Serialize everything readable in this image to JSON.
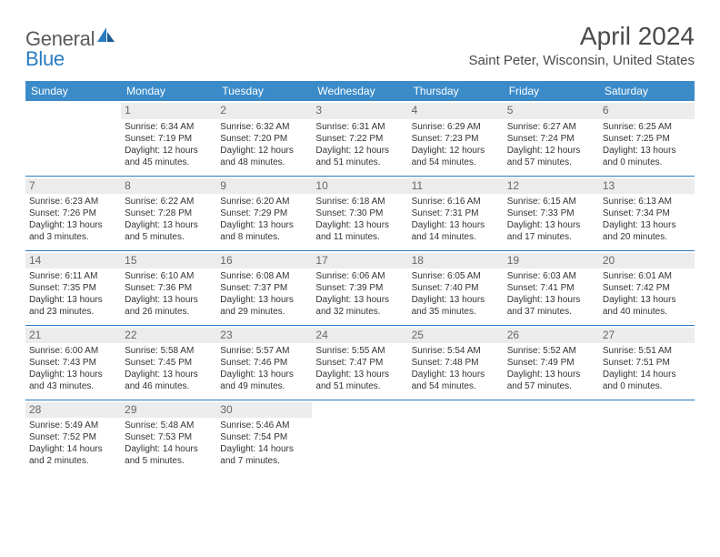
{
  "brand": {
    "part1": "General",
    "part2": "Blue"
  },
  "title": "April 2024",
  "location": "Saint Peter, Wisconsin, United States",
  "header_bg": "#3b8bc9",
  "rule_color": "#2b7bbf",
  "daynum_bg": "#ececec",
  "day_headers": [
    "Sunday",
    "Monday",
    "Tuesday",
    "Wednesday",
    "Thursday",
    "Friday",
    "Saturday"
  ],
  "weeks": [
    [
      null,
      {
        "n": "1",
        "sr": "Sunrise: 6:34 AM",
        "ss": "Sunset: 7:19 PM",
        "d1": "Daylight: 12 hours",
        "d2": "and 45 minutes."
      },
      {
        "n": "2",
        "sr": "Sunrise: 6:32 AM",
        "ss": "Sunset: 7:20 PM",
        "d1": "Daylight: 12 hours",
        "d2": "and 48 minutes."
      },
      {
        "n": "3",
        "sr": "Sunrise: 6:31 AM",
        "ss": "Sunset: 7:22 PM",
        "d1": "Daylight: 12 hours",
        "d2": "and 51 minutes."
      },
      {
        "n": "4",
        "sr": "Sunrise: 6:29 AM",
        "ss": "Sunset: 7:23 PM",
        "d1": "Daylight: 12 hours",
        "d2": "and 54 minutes."
      },
      {
        "n": "5",
        "sr": "Sunrise: 6:27 AM",
        "ss": "Sunset: 7:24 PM",
        "d1": "Daylight: 12 hours",
        "d2": "and 57 minutes."
      },
      {
        "n": "6",
        "sr": "Sunrise: 6:25 AM",
        "ss": "Sunset: 7:25 PM",
        "d1": "Daylight: 13 hours",
        "d2": "and 0 minutes."
      }
    ],
    [
      {
        "n": "7",
        "sr": "Sunrise: 6:23 AM",
        "ss": "Sunset: 7:26 PM",
        "d1": "Daylight: 13 hours",
        "d2": "and 3 minutes."
      },
      {
        "n": "8",
        "sr": "Sunrise: 6:22 AM",
        "ss": "Sunset: 7:28 PM",
        "d1": "Daylight: 13 hours",
        "d2": "and 5 minutes."
      },
      {
        "n": "9",
        "sr": "Sunrise: 6:20 AM",
        "ss": "Sunset: 7:29 PM",
        "d1": "Daylight: 13 hours",
        "d2": "and 8 minutes."
      },
      {
        "n": "10",
        "sr": "Sunrise: 6:18 AM",
        "ss": "Sunset: 7:30 PM",
        "d1": "Daylight: 13 hours",
        "d2": "and 11 minutes."
      },
      {
        "n": "11",
        "sr": "Sunrise: 6:16 AM",
        "ss": "Sunset: 7:31 PM",
        "d1": "Daylight: 13 hours",
        "d2": "and 14 minutes."
      },
      {
        "n": "12",
        "sr": "Sunrise: 6:15 AM",
        "ss": "Sunset: 7:33 PM",
        "d1": "Daylight: 13 hours",
        "d2": "and 17 minutes."
      },
      {
        "n": "13",
        "sr": "Sunrise: 6:13 AM",
        "ss": "Sunset: 7:34 PM",
        "d1": "Daylight: 13 hours",
        "d2": "and 20 minutes."
      }
    ],
    [
      {
        "n": "14",
        "sr": "Sunrise: 6:11 AM",
        "ss": "Sunset: 7:35 PM",
        "d1": "Daylight: 13 hours",
        "d2": "and 23 minutes."
      },
      {
        "n": "15",
        "sr": "Sunrise: 6:10 AM",
        "ss": "Sunset: 7:36 PM",
        "d1": "Daylight: 13 hours",
        "d2": "and 26 minutes."
      },
      {
        "n": "16",
        "sr": "Sunrise: 6:08 AM",
        "ss": "Sunset: 7:37 PM",
        "d1": "Daylight: 13 hours",
        "d2": "and 29 minutes."
      },
      {
        "n": "17",
        "sr": "Sunrise: 6:06 AM",
        "ss": "Sunset: 7:39 PM",
        "d1": "Daylight: 13 hours",
        "d2": "and 32 minutes."
      },
      {
        "n": "18",
        "sr": "Sunrise: 6:05 AM",
        "ss": "Sunset: 7:40 PM",
        "d1": "Daylight: 13 hours",
        "d2": "and 35 minutes."
      },
      {
        "n": "19",
        "sr": "Sunrise: 6:03 AM",
        "ss": "Sunset: 7:41 PM",
        "d1": "Daylight: 13 hours",
        "d2": "and 37 minutes."
      },
      {
        "n": "20",
        "sr": "Sunrise: 6:01 AM",
        "ss": "Sunset: 7:42 PM",
        "d1": "Daylight: 13 hours",
        "d2": "and 40 minutes."
      }
    ],
    [
      {
        "n": "21",
        "sr": "Sunrise: 6:00 AM",
        "ss": "Sunset: 7:43 PM",
        "d1": "Daylight: 13 hours",
        "d2": "and 43 minutes."
      },
      {
        "n": "22",
        "sr": "Sunrise: 5:58 AM",
        "ss": "Sunset: 7:45 PM",
        "d1": "Daylight: 13 hours",
        "d2": "and 46 minutes."
      },
      {
        "n": "23",
        "sr": "Sunrise: 5:57 AM",
        "ss": "Sunset: 7:46 PM",
        "d1": "Daylight: 13 hours",
        "d2": "and 49 minutes."
      },
      {
        "n": "24",
        "sr": "Sunrise: 5:55 AM",
        "ss": "Sunset: 7:47 PM",
        "d1": "Daylight: 13 hours",
        "d2": "and 51 minutes."
      },
      {
        "n": "25",
        "sr": "Sunrise: 5:54 AM",
        "ss": "Sunset: 7:48 PM",
        "d1": "Daylight: 13 hours",
        "d2": "and 54 minutes."
      },
      {
        "n": "26",
        "sr": "Sunrise: 5:52 AM",
        "ss": "Sunset: 7:49 PM",
        "d1": "Daylight: 13 hours",
        "d2": "and 57 minutes."
      },
      {
        "n": "27",
        "sr": "Sunrise: 5:51 AM",
        "ss": "Sunset: 7:51 PM",
        "d1": "Daylight: 14 hours",
        "d2": "and 0 minutes."
      }
    ],
    [
      {
        "n": "28",
        "sr": "Sunrise: 5:49 AM",
        "ss": "Sunset: 7:52 PM",
        "d1": "Daylight: 14 hours",
        "d2": "and 2 minutes."
      },
      {
        "n": "29",
        "sr": "Sunrise: 5:48 AM",
        "ss": "Sunset: 7:53 PM",
        "d1": "Daylight: 14 hours",
        "d2": "and 5 minutes."
      },
      {
        "n": "30",
        "sr": "Sunrise: 5:46 AM",
        "ss": "Sunset: 7:54 PM",
        "d1": "Daylight: 14 hours",
        "d2": "and 7 minutes."
      },
      null,
      null,
      null,
      null
    ]
  ]
}
